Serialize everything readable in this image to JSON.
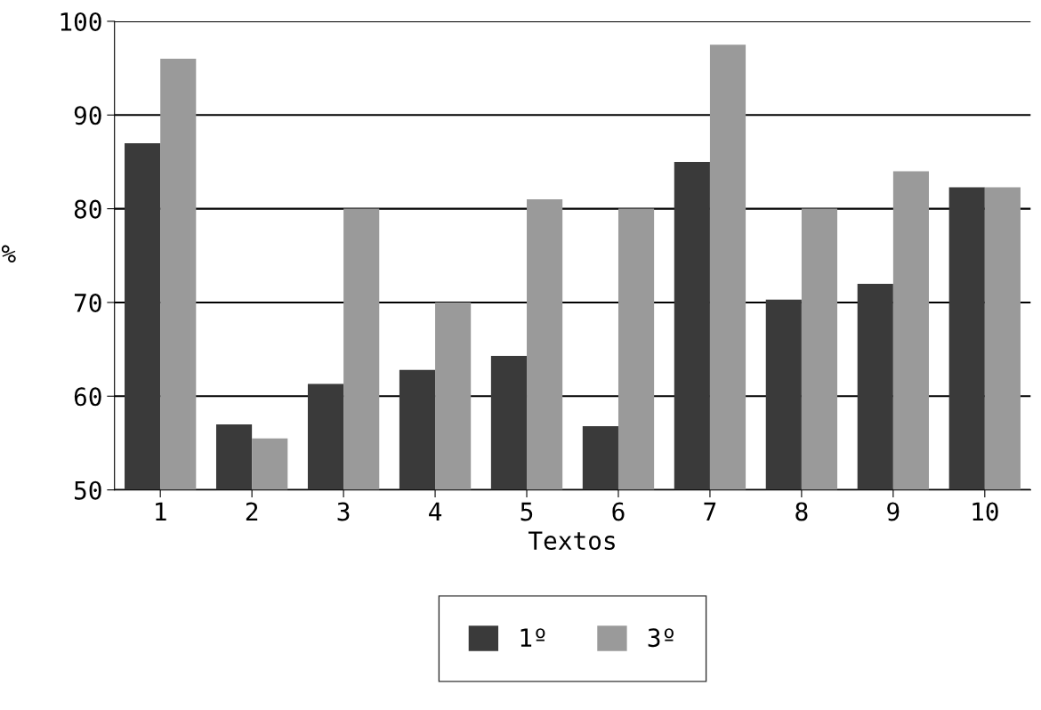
{
  "chart_data": {
    "type": "bar",
    "xlabel": "Textos",
    "ylabel": "%",
    "categories": [
      "1",
      "2",
      "3",
      "4",
      "5",
      "6",
      "7",
      "8",
      "9",
      "10"
    ],
    "series": [
      {
        "name": "1º",
        "color": "#3a3a3a",
        "values": [
          87,
          57,
          61.3,
          62.8,
          64.3,
          56.8,
          85,
          70.3,
          72,
          82.3
        ]
      },
      {
        "name": "3º",
        "color": "#9a9a9a",
        "values": [
          96,
          55.5,
          80,
          70,
          81,
          80,
          97.5,
          80,
          84,
          82.3
        ]
      }
    ],
    "ylim": [
      50,
      100
    ],
    "yticks": [
      50,
      60,
      70,
      80,
      90,
      100
    ],
    "grid": "y",
    "legend": "bottom"
  }
}
